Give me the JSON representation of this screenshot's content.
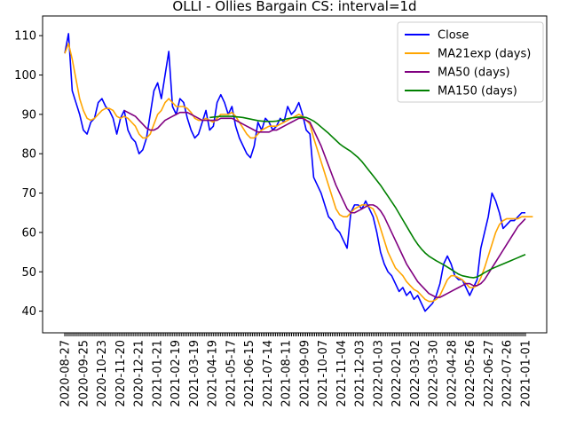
{
  "chart_data": {
    "type": "line",
    "title": "OLLI - Ollies Bargain CS: interval=1d",
    "xlabel": "",
    "ylabel": "",
    "ylim": [
      34.5,
      115
    ],
    "yticks": [
      40,
      50,
      60,
      70,
      80,
      90,
      100,
      110
    ],
    "x_tick_labels": [
      "2020-08-27",
      "2020-09-25",
      "2020-10-23",
      "2020-11-20",
      "2020-12-21",
      "2021-01-21",
      "2021-02-19",
      "2021-03-19",
      "2021-04-19",
      "2021-05-17",
      "2021-06-15",
      "2021-07-14",
      "2021-08-11",
      "2021-09-09",
      "2021-10-07",
      "2021-11-04",
      "2021-12-03",
      "2022-01-03",
      "2022-02-01",
      "2022-03-02",
      "2022-03-30",
      "2022-04-28",
      "2022-05-26",
      "2022-06-27",
      "2022-07-26",
      "2021-01-01"
    ],
    "grid": false,
    "legend_position": "top-right",
    "series": [
      {
        "name": "Close",
        "color": "#0000ff",
        "values": [
          105.5,
          110.5,
          96,
          93,
          90,
          86,
          85,
          88,
          89,
          93,
          94,
          92,
          91,
          89,
          85,
          89,
          91,
          86,
          84,
          83,
          80,
          81,
          84,
          90,
          96,
          98,
          94,
          100,
          106,
          92,
          90,
          94,
          93,
          89,
          86,
          84,
          85,
          88,
          91,
          86,
          87,
          93,
          95,
          93,
          90,
          92,
          87,
          84,
          82,
          80,
          79,
          82,
          88,
          86,
          89,
          88,
          86,
          87,
          89,
          88,
          92,
          90,
          91,
          93,
          90,
          86,
          85,
          74,
          72,
          70,
          67,
          64,
          63,
          61,
          60,
          58,
          56,
          65,
          67,
          67,
          66,
          68,
          66,
          64,
          60,
          55,
          52,
          50,
          49,
          47,
          45,
          46,
          44,
          45,
          43,
          44,
          42,
          40,
          41,
          42,
          44,
          47,
          52,
          54,
          52,
          49,
          48,
          48,
          46,
          44,
          46,
          48,
          56,
          60,
          64,
          70,
          68,
          65,
          61,
          62,
          63,
          63,
          64,
          65,
          65
        ]
      },
      {
        "name": "MA21exp (days)",
        "color": "#ffa500",
        "values": [
          105.5,
          108,
          104,
          99,
          94,
          91,
          89,
          88.5,
          89,
          90,
          91,
          91.5,
          91.5,
          91,
          89.5,
          89,
          89.5,
          89,
          88,
          87,
          85,
          84,
          84,
          85,
          87.5,
          90,
          91,
          93,
          94,
          93,
          92,
          92,
          92,
          91.5,
          90.5,
          89,
          88.5,
          88.5,
          89,
          88.5,
          88,
          89,
          90,
          90,
          90,
          90.5,
          89.5,
          88,
          86.5,
          85,
          84,
          84,
          85,
          86,
          86.5,
          87,
          87,
          87,
          87.5,
          88,
          88.5,
          89,
          89.5,
          90,
          89.5,
          88.5,
          87.5,
          84,
          81,
          78,
          75,
          72,
          69,
          66,
          64.5,
          64,
          64,
          65,
          66,
          66.5,
          67,
          67,
          66.5,
          66,
          64,
          61,
          58,
          55,
          53,
          51,
          50,
          49,
          47.5,
          46.5,
          45.5,
          45,
          44,
          43,
          42.5,
          42.5,
          43,
          44,
          46,
          48,
          49,
          49,
          48.5,
          48,
          47,
          46,
          46,
          46.5,
          48.5,
          51,
          54,
          57,
          60,
          62,
          63,
          63.5,
          63.5,
          63.5,
          63.5,
          64,
          64,
          64,
          64
        ]
      },
      {
        "name": "MA50 (days)",
        "color": "#800080",
        "values": [
          null,
          null,
          null,
          null,
          null,
          null,
          null,
          null,
          null,
          null,
          null,
          null,
          null,
          null,
          null,
          null,
          91,
          90.5,
          90,
          89.5,
          88.5,
          87.5,
          86.5,
          86,
          86,
          86.5,
          87.5,
          88.5,
          89,
          89.5,
          90,
          90.5,
          90.5,
          90.5,
          90,
          89.5,
          89,
          88.5,
          88.5,
          88.5,
          88.5,
          88.5,
          89,
          89,
          89,
          89,
          88.5,
          88,
          87.5,
          87,
          86.5,
          86,
          85.5,
          85.5,
          85.5,
          85.5,
          86,
          86,
          86.5,
          87,
          87.5,
          88,
          88.5,
          89,
          89,
          88.5,
          88,
          86,
          84,
          82,
          79.5,
          77,
          74.5,
          72,
          70,
          68,
          66,
          65,
          65,
          65.5,
          66,
          66.5,
          67,
          67,
          66.5,
          65.5,
          64,
          62,
          60,
          58,
          56,
          54,
          52,
          50.5,
          49,
          47.5,
          46.5,
          45.5,
          44.5,
          44,
          43.5,
          43.5,
          44,
          44.5,
          45,
          45.5,
          46,
          46.5,
          47,
          47,
          46.5,
          46.5,
          47,
          48,
          49.5,
          51,
          52.5,
          54,
          55.5,
          57,
          58.5,
          60,
          61.5,
          62.5,
          63.5
        ]
      },
      {
        "name": "MA150 (days)",
        "color": "#008000",
        "values": [
          null,
          null,
          null,
          null,
          null,
          null,
          null,
          null,
          null,
          null,
          null,
          null,
          null,
          null,
          null,
          null,
          null,
          null,
          null,
          null,
          null,
          null,
          null,
          null,
          null,
          null,
          null,
          null,
          null,
          null,
          null,
          null,
          null,
          null,
          null,
          null,
          null,
          null,
          null,
          89.2,
          89.3,
          89.4,
          89.5,
          89.5,
          89.5,
          89.5,
          89.4,
          89.3,
          89.2,
          89,
          88.8,
          88.6,
          88.4,
          88.3,
          88.2,
          88.2,
          88.2,
          88.3,
          88.5,
          88.7,
          88.9,
          89.1,
          89.2,
          89.3,
          89.3,
          89.2,
          88.8,
          88.3,
          87.6,
          86.8,
          86,
          85.2,
          84.3,
          83.4,
          82.5,
          81.8,
          81.2,
          80.6,
          79.8,
          79,
          78,
          76.8,
          75.6,
          74.4,
          73.2,
          72,
          70.6,
          69.2,
          67.8,
          66.4,
          64.8,
          63.2,
          61.6,
          60,
          58.4,
          57,
          55.8,
          54.8,
          54,
          53.4,
          52.8,
          52.3,
          51.8,
          51.2,
          50.6,
          50,
          49.4,
          49,
          48.8,
          48.6,
          48.5,
          48.7,
          49.2,
          49.8,
          50.3,
          50.8,
          51.2,
          51.6,
          52,
          52.4,
          52.8,
          53.2,
          53.6,
          54,
          54.4
        ]
      }
    ]
  }
}
